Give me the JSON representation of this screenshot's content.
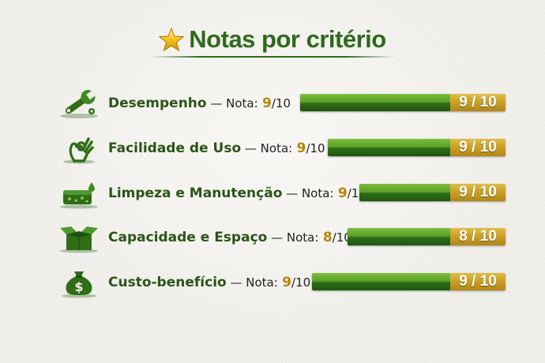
{
  "header": {
    "title": "Notas por critério",
    "icon": "star-icon"
  },
  "score_prefix": "Nota:",
  "score_sep": " — ",
  "rows": [
    {
      "criterion": "Desempenho",
      "score": "9",
      "denom": "/10",
      "badge": "9 / 10",
      "value": 9,
      "max": 10,
      "icon": "wrench-icon"
    },
    {
      "criterion": "Facilidade de Uso",
      "score": "9",
      "denom": "/10",
      "badge": "9 / 10",
      "value": 9,
      "max": 10,
      "icon": "ok-hand-icon"
    },
    {
      "criterion": "Limpeza e Manutenção",
      "score": "9",
      "denom": "/10",
      "badge": "9 / 10",
      "value": 9,
      "max": 10,
      "icon": "sponge-icon"
    },
    {
      "criterion": "Capacidade e Espaço",
      "score": "8",
      "denom": "/10",
      "badge": "8 / 10",
      "value": 8,
      "max": 10,
      "icon": "open-box-icon"
    },
    {
      "criterion": "Custo-benefício",
      "score": "9",
      "denom": "/10",
      "badge": "9 / 10",
      "value": 9,
      "max": 10,
      "icon": "money-bag-icon"
    }
  ],
  "colors": {
    "green": "#2e6a1e",
    "gold": "#c99e25",
    "score_text": "#b8860b"
  }
}
